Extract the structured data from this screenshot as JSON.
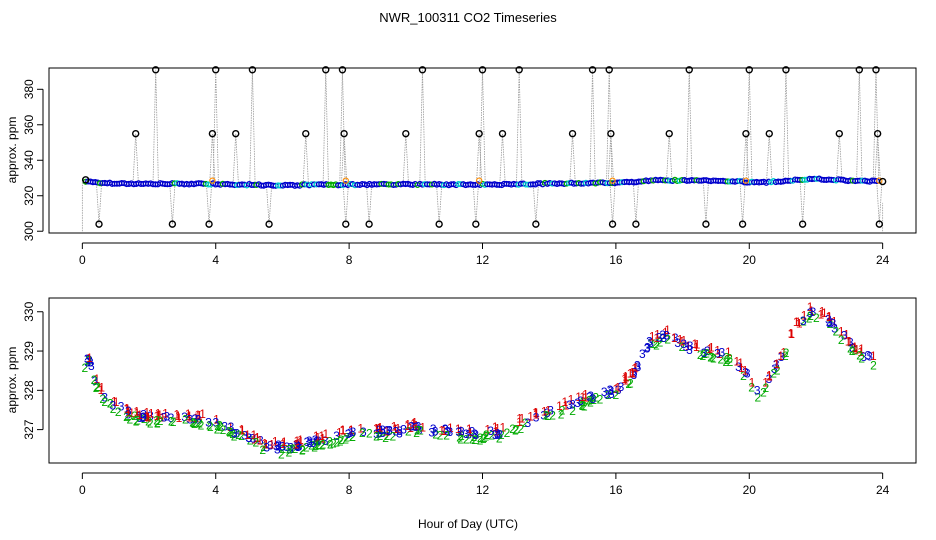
{
  "title": "NWR_100311  CO2 Timeseries",
  "xlabel": "Hour of Day (UTC)",
  "colors": {
    "frame": "#000000",
    "outlier_marker": "#000000",
    "connector_line": "#9a9a9a",
    "series_1": "#dd0000",
    "series_2": "#00aa00",
    "series_3": "#0000cc",
    "series_flag": "#00cccc",
    "series_orange": "#ff8c00"
  },
  "chart_data": [
    {
      "type": "scatter",
      "panel": "top",
      "ylabel": "approx. ppm",
      "xlim": [
        -1,
        25
      ],
      "ylim": [
        299,
        392
      ],
      "xticks": [
        0,
        4,
        8,
        12,
        16,
        20,
        24
      ],
      "xtick_labels": [
        "0",
        "4",
        "8",
        "12",
        "16",
        "20",
        "24"
      ],
      "yticks": [
        300,
        320,
        340,
        360,
        380
      ],
      "ytick_labels": [
        "300",
        "320",
        "340",
        "360",
        "380"
      ],
      "baseline_note": "dense baseline near 326-330 ppm with blue/green markers",
      "outliers": [
        {
          "x": 0.5,
          "y": 304
        },
        {
          "x": 1.6,
          "y": 355
        },
        {
          "x": 2.2,
          "y": 391
        },
        {
          "x": 2.7,
          "y": 304
        },
        {
          "x": 3.8,
          "y": 304
        },
        {
          "x": 3.9,
          "y": 355
        },
        {
          "x": 4.0,
          "y": 391
        },
        {
          "x": 4.6,
          "y": 355
        },
        {
          "x": 5.1,
          "y": 391
        },
        {
          "x": 5.6,
          "y": 304
        },
        {
          "x": 6.7,
          "y": 355
        },
        {
          "x": 7.3,
          "y": 391
        },
        {
          "x": 7.8,
          "y": 391
        },
        {
          "x": 7.85,
          "y": 355
        },
        {
          "x": 7.9,
          "y": 304
        },
        {
          "x": 8.6,
          "y": 304
        },
        {
          "x": 9.7,
          "y": 355
        },
        {
          "x": 10.2,
          "y": 391
        },
        {
          "x": 10.7,
          "y": 304
        },
        {
          "x": 11.8,
          "y": 304
        },
        {
          "x": 11.9,
          "y": 355
        },
        {
          "x": 12.0,
          "y": 391
        },
        {
          "x": 12.6,
          "y": 355
        },
        {
          "x": 13.1,
          "y": 391
        },
        {
          "x": 13.6,
          "y": 304
        },
        {
          "x": 14.7,
          "y": 355
        },
        {
          "x": 15.3,
          "y": 391
        },
        {
          "x": 15.8,
          "y": 391
        },
        {
          "x": 15.85,
          "y": 355
        },
        {
          "x": 15.9,
          "y": 304
        },
        {
          "x": 16.6,
          "y": 304
        },
        {
          "x": 17.6,
          "y": 355
        },
        {
          "x": 18.2,
          "y": 391
        },
        {
          "x": 18.7,
          "y": 304
        },
        {
          "x": 19.8,
          "y": 304
        },
        {
          "x": 19.9,
          "y": 355
        },
        {
          "x": 20.0,
          "y": 391
        },
        {
          "x": 20.6,
          "y": 355
        },
        {
          "x": 21.1,
          "y": 391
        },
        {
          "x": 21.6,
          "y": 304
        },
        {
          "x": 22.7,
          "y": 355
        },
        {
          "x": 23.3,
          "y": 391
        },
        {
          "x": 23.8,
          "y": 391
        },
        {
          "x": 23.85,
          "y": 355
        },
        {
          "x": 23.9,
          "y": 304
        }
      ]
    },
    {
      "type": "scatter",
      "panel": "bottom",
      "ylabel": "approx. ppm",
      "xlim": [
        -1,
        25
      ],
      "ylim": [
        326.15,
        330.35
      ],
      "xticks": [
        0,
        4,
        8,
        12,
        16,
        20,
        24
      ],
      "xtick_labels": [
        "0",
        "4",
        "8",
        "12",
        "16",
        "20",
        "24"
      ],
      "yticks": [
        327,
        328,
        329,
        330
      ],
      "ytick_labels": [
        "327",
        "328",
        "329",
        "330"
      ],
      "series_labels": [
        "1",
        "2",
        "3"
      ],
      "trend": [
        [
          0.05,
          328.6
        ],
        [
          0.2,
          328.85
        ],
        [
          0.4,
          328.2
        ],
        [
          0.7,
          327.8
        ],
        [
          1.0,
          327.6
        ],
        [
          1.5,
          327.4
        ],
        [
          2.0,
          327.3
        ],
        [
          3.0,
          327.3
        ],
        [
          3.5,
          327.3
        ],
        [
          4.0,
          327.2
        ],
        [
          4.5,
          327.0
        ],
        [
          5.0,
          326.8
        ],
        [
          5.5,
          326.6
        ],
        [
          6.0,
          326.55
        ],
        [
          6.5,
          326.6
        ],
        [
          7.0,
          326.7
        ],
        [
          7.5,
          326.8
        ],
        [
          8.0,
          326.9
        ],
        [
          8.5,
          327.0
        ],
        [
          9.0,
          326.95
        ],
        [
          9.5,
          326.95
        ],
        [
          10.0,
          327.05
        ],
        [
          10.5,
          327.0
        ],
        [
          11.0,
          326.95
        ],
        [
          11.5,
          326.9
        ],
        [
          12.0,
          326.9
        ],
        [
          12.5,
          326.95
        ],
        [
          13.0,
          327.1
        ],
        [
          13.5,
          327.3
        ],
        [
          14.0,
          327.45
        ],
        [
          14.5,
          327.6
        ],
        [
          15.0,
          327.75
        ],
        [
          15.5,
          327.9
        ],
        [
          16.0,
          328.0
        ],
        [
          16.5,
          328.4
        ],
        [
          17.0,
          329.2
        ],
        [
          17.5,
          329.45
        ],
        [
          18.0,
          329.15
        ],
        [
          18.5,
          329.05
        ],
        [
          19.0,
          328.95
        ],
        [
          19.5,
          328.85
        ],
        [
          20.0,
          328.3
        ],
        [
          20.3,
          327.95
        ],
        [
          20.6,
          328.3
        ],
        [
          21.0,
          328.9
        ],
        [
          21.4,
          329.6
        ],
        [
          21.8,
          330.0
        ],
        [
          22.2,
          329.9
        ],
        [
          22.6,
          329.6
        ],
        [
          23.0,
          329.2
        ],
        [
          23.4,
          328.9
        ],
        [
          23.8,
          328.75
        ]
      ]
    }
  ]
}
